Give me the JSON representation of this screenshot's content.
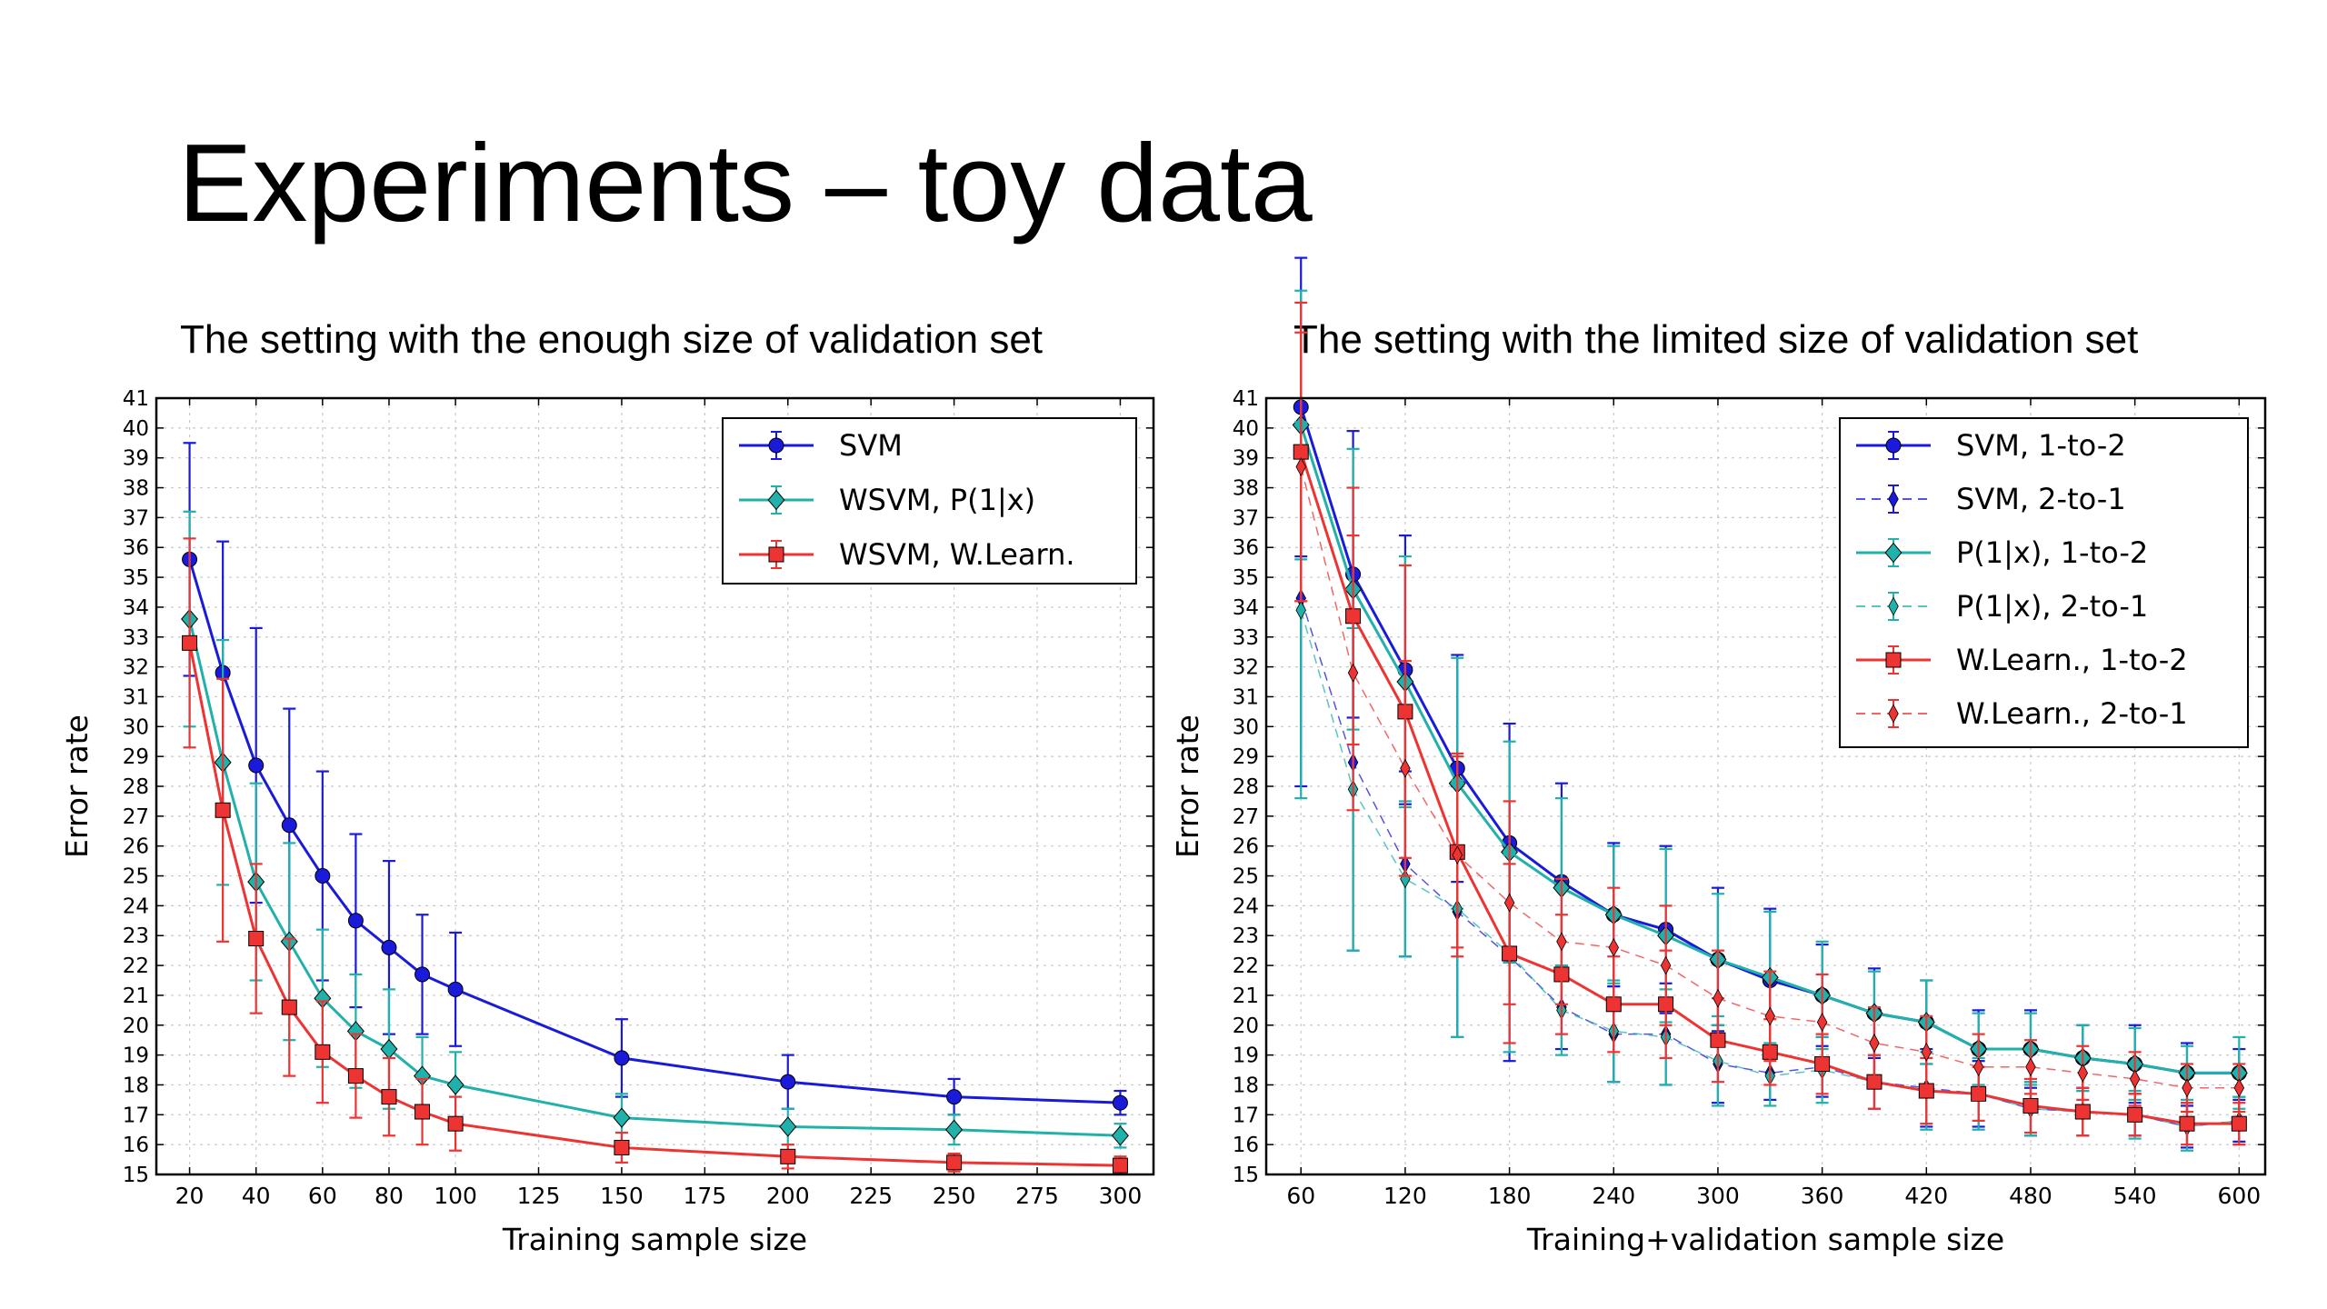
{
  "slide": {
    "title": "Experiments – toy data"
  },
  "chart_data": [
    {
      "type": "line",
      "subtitle": "The setting with the enough size of validation set",
      "xlabel": "Training sample size",
      "ylabel": "Error rate",
      "xlim": [
        10,
        310
      ],
      "ylim": [
        15,
        41
      ],
      "xticks": [
        20,
        40,
        60,
        80,
        100,
        125,
        150,
        175,
        200,
        225,
        250,
        275,
        300
      ],
      "yticks": [
        15,
        16,
        17,
        18,
        19,
        20,
        21,
        22,
        23,
        24,
        25,
        26,
        27,
        28,
        29,
        30,
        31,
        32,
        33,
        34,
        35,
        36,
        37,
        38,
        39,
        40,
        41
      ],
      "grid": true,
      "legend_position": "upper-right",
      "x": [
        20,
        30,
        40,
        50,
        60,
        70,
        80,
        90,
        100,
        150,
        200,
        250,
        300
      ],
      "series": [
        {
          "name": "SVM",
          "color": "#1a1adb",
          "marker": "circle",
          "line": "solid",
          "values": [
            35.6,
            31.8,
            28.7,
            26.7,
            25.0,
            23.5,
            22.6,
            21.7,
            21.2,
            18.9,
            18.1,
            17.6,
            17.4
          ],
          "errors": [
            3.9,
            4.4,
            4.6,
            3.9,
            3.5,
            2.9,
            2.9,
            2.0,
            1.9,
            1.3,
            0.9,
            0.6,
            0.4
          ]
        },
        {
          "name": "WSVM, P(1|x)",
          "color": "#20b2aa",
          "marker": "diamond",
          "line": "solid",
          "values": [
            33.6,
            28.8,
            24.8,
            22.8,
            20.9,
            19.8,
            19.2,
            18.3,
            18.0,
            16.9,
            16.6,
            16.5,
            16.3
          ],
          "errors": [
            3.6,
            4.1,
            3.3,
            3.3,
            2.3,
            1.9,
            2.0,
            1.3,
            1.1,
            0.8,
            0.6,
            0.5,
            0.4
          ]
        },
        {
          "name": "WSVM, W.Learn.",
          "color": "#ee3333",
          "marker": "square",
          "line": "solid",
          "values": [
            32.8,
            27.2,
            22.9,
            20.6,
            19.1,
            18.3,
            17.6,
            17.1,
            16.7,
            15.9,
            15.6,
            15.4,
            15.3
          ],
          "errors": [
            3.5,
            4.4,
            2.5,
            2.3,
            1.7,
            1.4,
            1.3,
            1.1,
            0.9,
            0.5,
            0.4,
            0.3,
            0.3
          ]
        }
      ]
    },
    {
      "type": "line",
      "subtitle": "The setting with the limited size of validation set",
      "xlabel": "Training+validation sample size",
      "ylabel": "Error rate",
      "xlim": [
        40,
        615
      ],
      "ylim": [
        15,
        41
      ],
      "xticks": [
        60,
        120,
        180,
        240,
        300,
        360,
        420,
        480,
        540,
        600
      ],
      "yticks": [
        15,
        16,
        17,
        18,
        19,
        20,
        21,
        22,
        23,
        24,
        25,
        26,
        27,
        28,
        29,
        30,
        31,
        32,
        33,
        34,
        35,
        36,
        37,
        38,
        39,
        40,
        41
      ],
      "grid": true,
      "legend_position": "upper-right",
      "x": [
        60,
        90,
        120,
        150,
        180,
        210,
        240,
        270,
        300,
        330,
        360,
        390,
        420,
        450,
        480,
        510,
        540,
        570,
        600
      ],
      "series": [
        {
          "name": "SVM, 1-to-2",
          "color": "#1a1adb",
          "marker": "circle",
          "line": "solid",
          "values": [
            40.7,
            35.1,
            31.9,
            28.6,
            26.1,
            24.8,
            23.7,
            23.2,
            22.2,
            21.5,
            21.0,
            20.4,
            20.1,
            19.2,
            19.2,
            18.9,
            18.7,
            18.4,
            18.4
          ],
          "errors": [
            5.0,
            4.8,
            4.5,
            3.8,
            4.0,
            3.3,
            2.4,
            2.8,
            2.4,
            2.4,
            1.7,
            1.5,
            1.4,
            1.3,
            1.3,
            1.1,
            1.3,
            1.0,
            0.8
          ]
        },
        {
          "name": "SVM, 2-to-1",
          "color": "#1a1adb",
          "marker": "thin-diamond",
          "line": "dashed",
          "values": [
            34.3,
            28.8,
            25.4,
            23.8,
            22.3,
            20.6,
            19.7,
            19.7,
            18.7,
            18.4,
            18.6,
            18.1,
            17.9,
            17.7,
            17.2,
            17.1,
            17.0,
            16.6,
            16.8
          ],
          "errors": [
            6.3,
            6.3,
            3.1,
            4.2,
            3.5,
            1.4,
            1.6,
            1.7,
            1.3,
            0.9,
            1.0,
            0.9,
            1.3,
            1.1,
            0.9,
            0.8,
            0.7,
            0.7,
            0.7
          ]
        },
        {
          "name": "P(1|x), 1-to-2",
          "color": "#20b2aa",
          "marker": "diamond",
          "line": "solid",
          "values": [
            40.1,
            34.6,
            31.5,
            28.1,
            25.8,
            24.6,
            23.7,
            23.0,
            22.2,
            21.6,
            21.0,
            20.4,
            20.1,
            19.2,
            19.2,
            18.9,
            18.7,
            18.4,
            18.4
          ],
          "errors": [
            4.5,
            4.7,
            4.2,
            4.2,
            3.7,
            3.0,
            2.3,
            2.9,
            2.2,
            2.2,
            1.8,
            1.4,
            1.4,
            1.2,
            1.2,
            1.1,
            1.2,
            0.9,
            1.2
          ]
        },
        {
          "name": "P(1|x), 2-to-1",
          "color": "#20b2aa",
          "marker": "thin-diamond",
          "line": "dashed",
          "values": [
            33.9,
            27.9,
            24.9,
            23.9,
            22.4,
            20.5,
            19.8,
            19.6,
            18.8,
            18.3,
            18.5,
            18.1,
            17.8,
            17.7,
            17.2,
            17.1,
            17.0,
            16.6,
            16.8
          ],
          "errors": [
            6.3,
            5.4,
            2.6,
            4.3,
            3.3,
            1.5,
            1.7,
            1.6,
            1.5,
            1.0,
            1.1,
            0.9,
            1.3,
            1.2,
            0.9,
            0.8,
            0.8,
            0.8,
            0.8
          ]
        },
        {
          "name": "W.Learn., 1-to-2",
          "color": "#ee3333",
          "marker": "square",
          "line": "solid",
          "values": [
            39.2,
            33.7,
            30.5,
            25.8,
            22.4,
            21.7,
            20.7,
            20.7,
            19.5,
            19.1,
            18.7,
            18.1,
            17.8,
            17.7,
            17.3,
            17.1,
            17.0,
            16.7,
            16.7
          ],
          "errors": [
            5.0,
            4.3,
            4.9,
            3.2,
            3.0,
            2.0,
            1.6,
            1.8,
            1.4,
            1.1,
            1.0,
            0.9,
            1.1,
            0.9,
            0.9,
            0.8,
            0.7,
            0.7,
            0.7
          ]
        },
        {
          "name": "W.Learn., 2-to-1",
          "color": "#ee3333",
          "marker": "thin-diamond",
          "line": "dashed",
          "values": [
            38.7,
            31.8,
            28.6,
            25.7,
            24.1,
            22.8,
            22.6,
            22.0,
            20.9,
            20.3,
            20.1,
            19.4,
            19.1,
            18.6,
            18.6,
            18.4,
            18.2,
            17.9,
            17.9
          ],
          "errors": [
            4.5,
            4.6,
            3.6,
            3.4,
            3.4,
            2.1,
            2.0,
            2.0,
            1.6,
            1.5,
            1.6,
            1.2,
            1.2,
            1.1,
            0.9,
            0.9,
            0.9,
            0.8,
            0.8
          ]
        }
      ]
    }
  ]
}
